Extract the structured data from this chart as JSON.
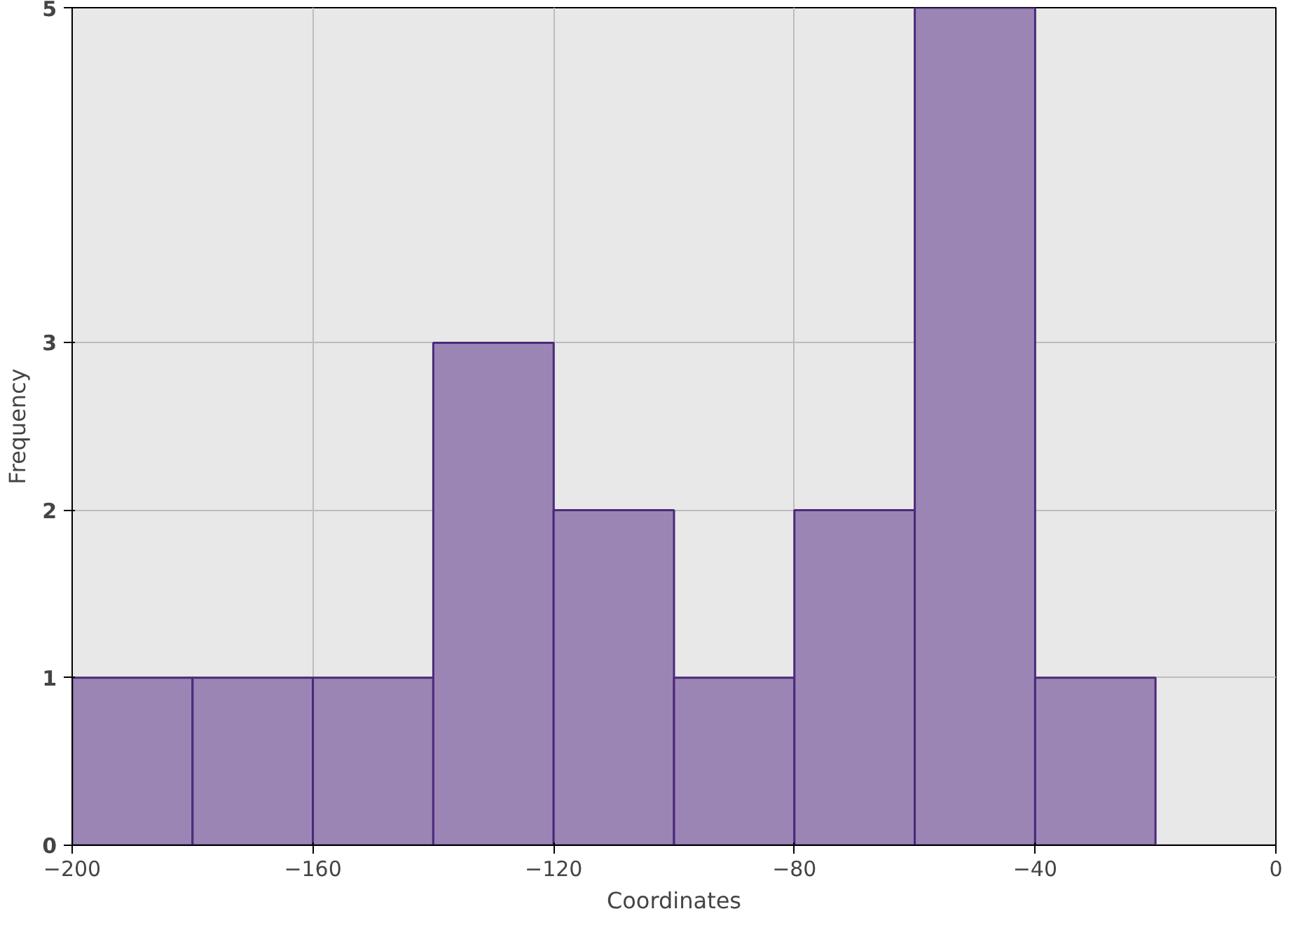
{
  "chart_data": {
    "type": "histogram",
    "xlabel": "Coordinates",
    "ylabel": "Frequency",
    "bins": [
      -200,
      -180,
      -160,
      -140,
      -120,
      -100,
      -80,
      -60,
      -40,
      -20,
      0
    ],
    "values": [
      1,
      1,
      1,
      3,
      2,
      1,
      2,
      5,
      1,
      0
    ],
    "color": "#9b85b5",
    "xlim": [
      -200,
      0
    ],
    "xticks": [
      -200,
      -160,
      -120,
      -80,
      -40,
      0
    ],
    "ylim": [
      0,
      5
    ],
    "yticks": [
      0,
      1,
      2,
      3,
      5
    ],
    "grid": true
  }
}
